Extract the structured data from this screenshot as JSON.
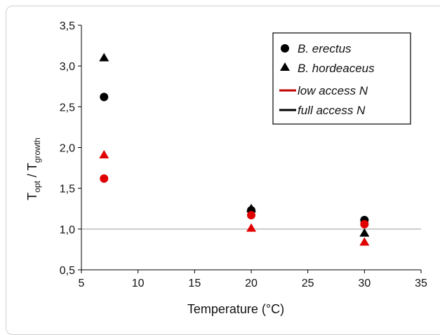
{
  "chart_data": {
    "type": "scatter",
    "xlabel": "Temperature (°C)",
    "ylabel": {
      "main": "T",
      "sub1": "opt",
      "sep": " / T",
      "sub2": "growth"
    },
    "xlim": [
      5,
      35
    ],
    "ylim": [
      0.5,
      3.5
    ],
    "x_ticks": [
      5,
      10,
      15,
      20,
      25,
      30,
      35
    ],
    "x_tick_labels": [
      "5",
      "10",
      "15",
      "20",
      "25",
      "30",
      "35"
    ],
    "y_ticks": [
      0.5,
      1.0,
      1.5,
      2.0,
      2.5,
      3.0,
      3.5
    ],
    "y_tick_labels": [
      "0,5",
      "1,0",
      "1,5",
      "2,0",
      "2,5",
      "3,0",
      "3,5"
    ],
    "reference_line_y": 1.0,
    "series": [
      {
        "name": "B. erectus",
        "marker": "circle",
        "access": "full",
        "color": "#000000",
        "x": [
          7,
          20,
          30
        ],
        "y": [
          2.62,
          1.23,
          1.11
        ]
      },
      {
        "name": "B. hordeaceus",
        "marker": "triangle",
        "access": "full",
        "color": "#000000",
        "x": [
          7,
          20,
          30
        ],
        "y": [
          3.1,
          1.25,
          0.95
        ]
      },
      {
        "name": "B. erectus",
        "marker": "circle",
        "access": "low",
        "color": "#e00000",
        "x": [
          7,
          20,
          30
        ],
        "y": [
          1.62,
          1.17,
          1.06
        ]
      },
      {
        "name": "B. hordeaceus",
        "marker": "triangle",
        "access": "low",
        "color": "#e00000",
        "x": [
          7,
          20,
          30
        ],
        "y": [
          1.91,
          1.01,
          0.84
        ]
      }
    ],
    "legend": {
      "placement": "top-right",
      "entries": [
        {
          "label": "B. erectus",
          "symbol": "circle",
          "color": "#000000"
        },
        {
          "label": "B. hordeaceus",
          "symbol": "triangle",
          "color": "#000000"
        },
        {
          "label": "low access N",
          "symbol": "line",
          "color": "#c00000"
        },
        {
          "label": "full access N",
          "symbol": "line",
          "color": "#000000"
        }
      ]
    }
  }
}
